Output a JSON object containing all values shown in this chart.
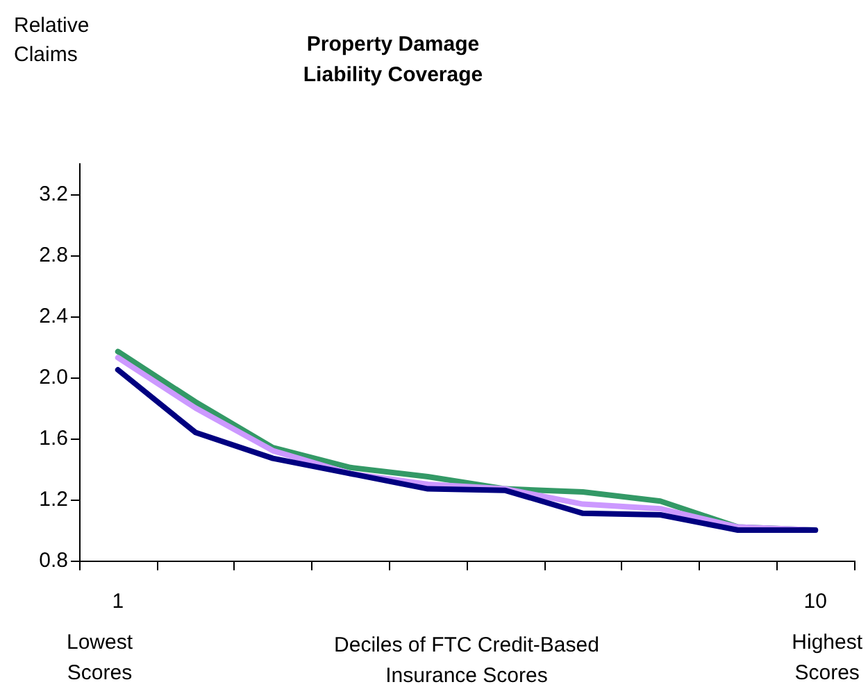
{
  "chart_data": {
    "type": "line",
    "title": "Property Damage\nLiability Coverage",
    "ylabel": "Relative\nClaims",
    "xlabel": "Deciles of FTC Credit-Based\nInsurance Scores",
    "annotations": [
      "Lowest\nScores",
      "Highest\nScores"
    ],
    "categories": [
      "1",
      null,
      null,
      null,
      null,
      null,
      null,
      null,
      null,
      "10"
    ],
    "series": [
      {
        "color": "#339966",
        "values": [
          2.17,
          1.84,
          1.54,
          1.41,
          1.35,
          1.27,
          1.25,
          1.19,
          1.02,
          1.0
        ]
      },
      {
        "color": "#cc99ff",
        "values": [
          2.13,
          1.8,
          1.52,
          1.37,
          1.3,
          1.27,
          1.17,
          1.14,
          1.02,
          1.0
        ]
      },
      {
        "color": "#000080",
        "values": [
          2.05,
          1.64,
          1.47,
          1.37,
          1.27,
          1.26,
          1.11,
          1.1,
          1.0,
          1.0
        ]
      }
    ],
    "ylim": [
      0.8,
      3.4
    ],
    "yticks": [
      {
        "value": 0.8,
        "label": "0.8"
      },
      {
        "value": 1.2,
        "label": "1.2"
      },
      {
        "value": 1.6,
        "label": "1.6"
      },
      {
        "value": 2.0,
        "label": "2.0"
      },
      {
        "value": 2.4,
        "label": "2.4"
      },
      {
        "value": 2.8,
        "label": "2.8"
      },
      {
        "value": 3.2,
        "label": "3.2"
      }
    ],
    "grid": false,
    "marker": "none",
    "line_style": "solid"
  }
}
